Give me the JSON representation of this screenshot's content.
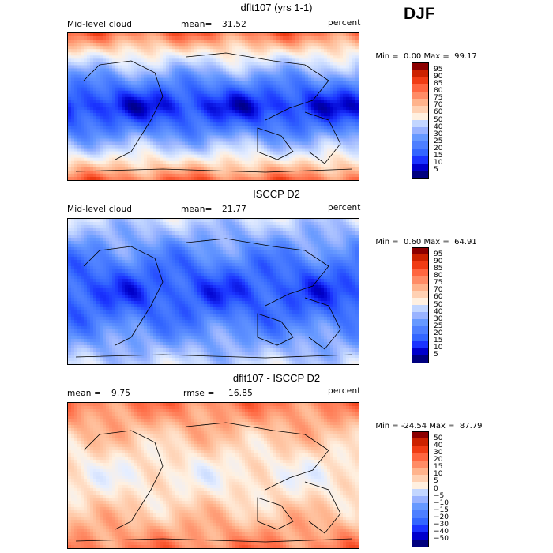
{
  "season": "DJF",
  "colors": {
    "scale_abs": [
      "#00007f",
      "#0000cc",
      "#1a33ff",
      "#3366ff",
      "#4d7fff",
      "#6699ff",
      "#99b3ff",
      "#c2d6ff",
      "#e6eeff",
      "#fff0e0",
      "#ffd1b3",
      "#ffb38c",
      "#ff8c66",
      "#ff6640",
      "#f03c14",
      "#cc2200",
      "#8c0000"
    ],
    "scale_diff": [
      "#00007f",
      "#0000cc",
      "#1a33ff",
      "#3366ff",
      "#4d7fff",
      "#6699ff",
      "#99b3ff",
      "#c2d6ff",
      "#e6eeff",
      "#fff0e0",
      "#ffd1b3",
      "#ffb38c",
      "#ff8c66",
      "#ff6640",
      "#f03c14",
      "#cc2200",
      "#8c0000"
    ]
  },
  "chart_data": [
    {
      "type": "heatmap",
      "title": "dflt107 (yrs 1-1)",
      "variable": "Mid-level cloud",
      "mean_label": "mean=",
      "mean": "31.52",
      "units": "percent",
      "min_label": "Min =",
      "min": "0.00",
      "max_label": "Max =",
      "max": "99.17",
      "levels": [
        "95",
        "90",
        "85",
        "80",
        "75",
        "70",
        "60",
        "50",
        "40",
        "30",
        "25",
        "20",
        "15",
        "10",
        "5"
      ],
      "high_lat_value": 80,
      "tropics_value": 10
    },
    {
      "type": "heatmap",
      "title": "ISCCP D2",
      "variable": "Mid-level cloud",
      "mean_label": "mean=",
      "mean": "21.77",
      "units": "percent",
      "min_label": "Min =",
      "min": "0.60",
      "max_label": "Max =",
      "max": "64.91",
      "levels": [
        "95",
        "90",
        "85",
        "80",
        "75",
        "70",
        "60",
        "50",
        "40",
        "30",
        "25",
        "20",
        "15",
        "10",
        "5"
      ],
      "high_lat_value": 45,
      "tropics_value": 15
    },
    {
      "type": "heatmap",
      "title": "dflt107 - ISCCP D2",
      "mean_label": "mean =",
      "mean": "9.75",
      "rmse_label": "rmse =",
      "rmse": "16.85",
      "units": "percent",
      "min_label": "Min =",
      "min": "-24.54",
      "max_label": "Max =",
      "max": "87.79",
      "levels": [
        "50",
        "40",
        "30",
        "20",
        "15",
        "10",
        "5",
        "0",
        "−5",
        "−10",
        "−15",
        "−20",
        "−30",
        "−40",
        "−50"
      ],
      "high_lat_value": 30,
      "tropics_value": 5
    }
  ]
}
